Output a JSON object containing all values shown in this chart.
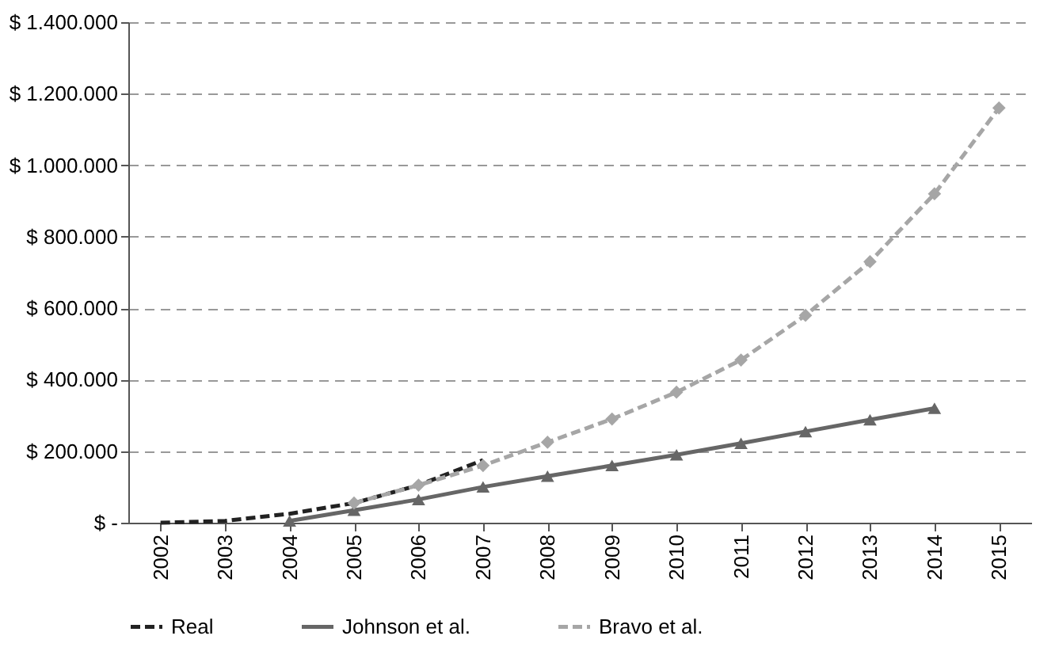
{
  "chart_data": {
    "type": "line",
    "categories": [
      "2002",
      "2003",
      "2004",
      "2005",
      "2006",
      "2007",
      "2008",
      "2009",
      "2010",
      "2011",
      "2012",
      "2013",
      "2014",
      "2015"
    ],
    "series": [
      {
        "name": "Real",
        "color": "#222222",
        "line_style": "dashed",
        "marker": "none",
        "values": [
          0,
          5000,
          25000,
          55000,
          105000,
          175000,
          null,
          null,
          null,
          null,
          null,
          null,
          null,
          null
        ]
      },
      {
        "name": "Johnson et al.",
        "color": "#666666",
        "line_style": "solid",
        "marker": "triangle",
        "values": [
          null,
          null,
          5000,
          35000,
          65000,
          100000,
          130000,
          160000,
          190000,
          222000,
          255000,
          288000,
          320000,
          null
        ]
      },
      {
        "name": "Bravo et al.",
        "color": "#a6a6a6",
        "line_style": "dashed",
        "marker": "diamond",
        "values": [
          null,
          null,
          null,
          55000,
          105000,
          160000,
          225000,
          290000,
          365000,
          455000,
          580000,
          730000,
          920000,
          1160000
        ]
      }
    ],
    "ylim": [
      0,
      1400000
    ],
    "yticks": [
      {
        "value": 0,
        "label": "$ -"
      },
      {
        "value": 200000,
        "label": "$ 200.000"
      },
      {
        "value": 400000,
        "label": "$ 400.000"
      },
      {
        "value": 600000,
        "label": "$ 600.000"
      },
      {
        "value": 800000,
        "label": "$ 800.000"
      },
      {
        "value": 1000000,
        "label": "$ 1.000.000"
      },
      {
        "value": 1200000,
        "label": "$ 1.200.000"
      },
      {
        "value": 1400000,
        "label": "$ 1.400.000"
      }
    ],
    "grid": "y",
    "legend": "bottom"
  }
}
